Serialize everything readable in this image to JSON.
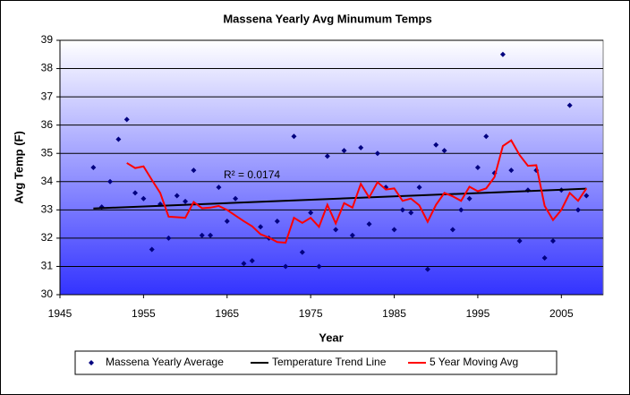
{
  "chart_data": {
    "type": "scatter",
    "title": "Massena Yearly Avg Minumum Temps",
    "x_label": "Year",
    "y_label": "Avg Temp (F)",
    "annotation": "R² = 0.0174",
    "xlim": [
      1945,
      2010
    ],
    "xticks": [
      1945,
      1955,
      1965,
      1975,
      1985,
      1995,
      2005
    ],
    "ylim": [
      30,
      39
    ],
    "yticks": [
      30,
      31,
      32,
      33,
      34,
      35,
      36,
      37,
      38,
      39
    ],
    "grid": true,
    "legend": "bottom",
    "series": [
      {
        "name": "Massena Yearly Average",
        "color": "#000080",
        "mode": "markers",
        "x": [
          1949,
          1950,
          1951,
          1952,
          1953,
          1954,
          1955,
          1956,
          1957,
          1958,
          1959,
          1960,
          1961,
          1962,
          1963,
          1964,
          1965,
          1966,
          1967,
          1968,
          1969,
          1970,
          1971,
          1972,
          1973,
          1974,
          1975,
          1976,
          1977,
          1978,
          1979,
          1980,
          1981,
          1982,
          1983,
          1984,
          1985,
          1986,
          1987,
          1988,
          1989,
          1990,
          1991,
          1992,
          1993,
          1994,
          1995,
          1996,
          1997,
          1998,
          1999,
          2000,
          2001,
          2002,
          2003,
          2004,
          2005,
          2006,
          2007,
          2008
        ],
        "values": [
          34.5,
          33.1,
          34.0,
          35.5,
          36.2,
          33.6,
          33.4,
          31.6,
          33.2,
          32.0,
          33.5,
          33.3,
          34.4,
          32.1,
          32.1,
          33.8,
          32.6,
          33.4,
          31.1,
          31.2,
          32.4,
          32.0,
          32.6,
          31.0,
          35.6,
          31.5,
          32.9,
          31.0,
          34.9,
          32.3,
          35.1,
          32.1,
          35.2,
          32.5,
          35.0,
          33.8,
          32.3,
          33.0,
          32.9,
          33.8,
          30.9,
          35.3,
          35.1,
          32.3,
          33.0,
          33.4,
          34.5,
          35.6,
          34.3,
          38.5,
          34.4,
          31.9,
          33.7,
          34.4,
          31.3,
          31.9,
          33.7,
          36.7,
          33.0,
          33.5
        ]
      },
      {
        "name": "Temperature Trend Line",
        "color": "#000000",
        "mode": "lines",
        "x": [
          1949,
          2008
        ],
        "values": [
          33.05,
          33.75
        ]
      },
      {
        "name": "5 Year Moving Avg",
        "color": "#ff0000",
        "mode": "lines",
        "x": [
          1953,
          1954,
          1955,
          1956,
          1957,
          1958,
          1959,
          1960,
          1961,
          1962,
          1963,
          1964,
          1965,
          1966,
          1967,
          1968,
          1969,
          1970,
          1971,
          1972,
          1973,
          1974,
          1975,
          1976,
          1977,
          1978,
          1979,
          1980,
          1981,
          1982,
          1983,
          1984,
          1985,
          1986,
          1987,
          1988,
          1989,
          1990,
          1991,
          1992,
          1993,
          1994,
          1995,
          1996,
          1997,
          1998,
          1999,
          2000,
          2001,
          2002,
          2003,
          2004,
          2005,
          2006,
          2007,
          2008
        ],
        "values": [
          34.66,
          34.48,
          34.54,
          34.06,
          33.6,
          32.76,
          32.74,
          32.72,
          33.28,
          33.06,
          33.08,
          33.14,
          33.0,
          32.8,
          32.6,
          32.42,
          32.14,
          32.02,
          31.86,
          31.84,
          32.72,
          32.54,
          32.72,
          32.4,
          33.18,
          32.52,
          33.24,
          33.08,
          33.92,
          33.44,
          33.98,
          33.72,
          33.76,
          33.32,
          33.4,
          33.16,
          32.58,
          33.18,
          33.6,
          33.48,
          33.32,
          33.82,
          33.66,
          33.76,
          34.16,
          35.26,
          35.46,
          34.94,
          34.56,
          34.58,
          33.14,
          32.64,
          33.0,
          33.6,
          33.32,
          33.76
        ]
      }
    ]
  }
}
